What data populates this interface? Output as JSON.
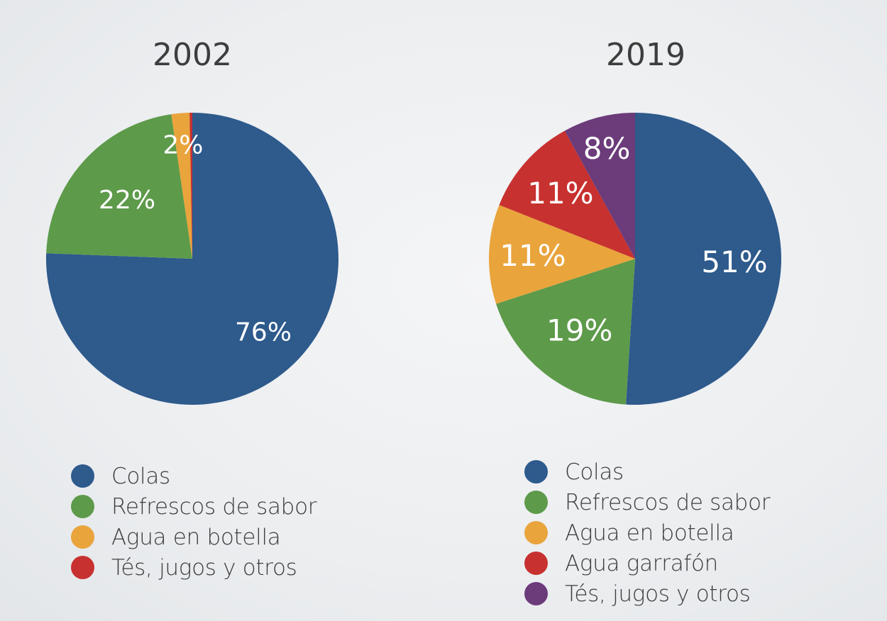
{
  "chart_data": [
    {
      "type": "pie",
      "title": "2002",
      "categories": [
        "Colas",
        "Refrescos de sabor",
        "Agua en botella",
        "Tés, jugos y otros"
      ],
      "values": [
        75.6,
        22.1,
        2.0,
        0.3
      ],
      "data_labels": [
        "76%",
        "22%",
        "2%",
        ""
      ],
      "colors": [
        "#2e5a8c",
        "#5d9a4a",
        "#e9a43c",
        "#c7312f"
      ],
      "legend_placement": "bottom"
    },
    {
      "type": "pie",
      "title": "2019",
      "categories": [
        "Colas",
        "Refrescos de sabor",
        "Agua en botella",
        "Agua garrafón",
        "Tés, jugos y otros"
      ],
      "values": [
        51,
        19,
        11,
        11,
        8
      ],
      "data_labels": [
        "51%",
        "19%",
        "11%",
        "11%",
        "8%"
      ],
      "colors": [
        "#2e5a8c",
        "#5d9a4a",
        "#e9a43c",
        "#c7312f",
        "#6b3b7a"
      ],
      "legend_placement": "bottom"
    }
  ]
}
